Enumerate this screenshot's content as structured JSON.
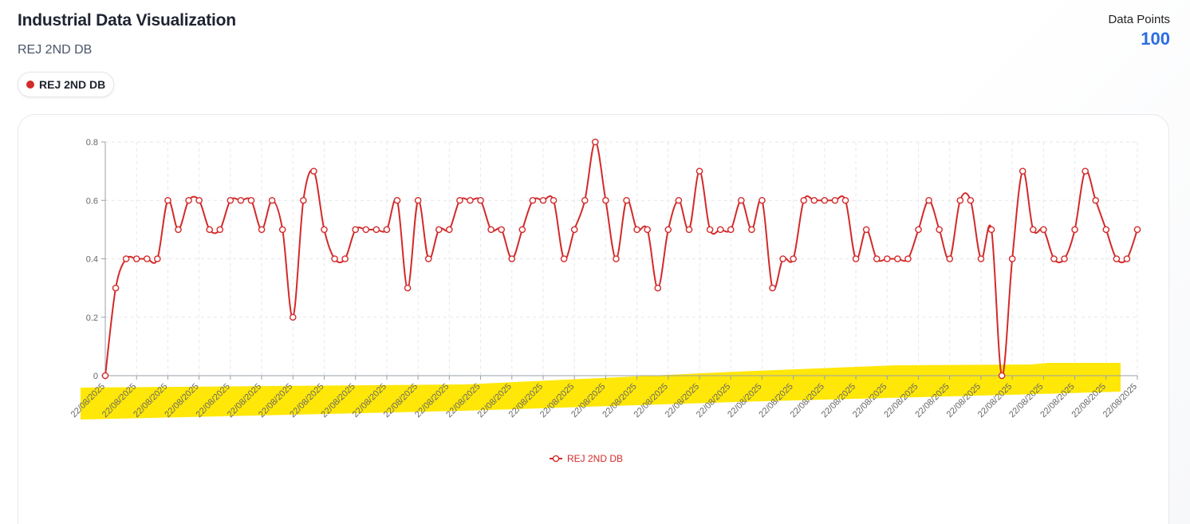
{
  "header": {
    "title": "Industrial Data Visualization",
    "subtitle": "REJ 2ND DB"
  },
  "stats": {
    "label": "Data Points",
    "value": "100"
  },
  "series_chip": {
    "label": "REJ 2ND DB",
    "color": "#d32a2a"
  },
  "colors": {
    "line": "#d32a2a",
    "grid": "#e5e7eb",
    "axis": "#9aa0a8",
    "highlight": "#ffe600"
  },
  "chart_data": {
    "type": "line",
    "title": "",
    "xlabel": "",
    "ylabel": "",
    "ylim": [
      0,
      0.8
    ],
    "yticks": [
      "0",
      "0.2",
      "0.4",
      "0.6",
      "0.8"
    ],
    "x_tick_labels": [
      "22/08/2025",
      "22/08/2025",
      "22/08/2025",
      "22/08/2025",
      "22/08/2025",
      "22/08/2025",
      "22/08/2025",
      "22/08/2025",
      "22/08/2025",
      "22/08/2025",
      "22/08/2025",
      "22/08/2025",
      "22/08/2025",
      "22/08/2025",
      "22/08/2025",
      "22/08/2025",
      "22/08/2025",
      "22/08/2025",
      "22/08/2025",
      "22/08/2025",
      "22/08/2025",
      "22/08/2025",
      "22/08/2025",
      "22/08/2025",
      "22/08/2025",
      "22/08/2025",
      "22/08/2025",
      "22/08/2025",
      "22/08/2025",
      "22/08/2025",
      "22/08/2025",
      "22/08/2025",
      "22/08/2025",
      "22/08/2025"
    ],
    "legend": "bottom-center",
    "series": [
      {
        "name": "REJ 2ND DB",
        "values": [
          0,
          0.3,
          0.4,
          0.4,
          0.4,
          0.4,
          0.6,
          0.5,
          0.6,
          0.6,
          0.5,
          0.5,
          0.6,
          0.6,
          0.6,
          0.5,
          0.6,
          0.5,
          0.2,
          0.6,
          0.7,
          0.5,
          0.4,
          0.4,
          0.5,
          0.5,
          0.5,
          0.5,
          0.6,
          0.3,
          0.6,
          0.4,
          0.5,
          0.5,
          0.6,
          0.6,
          0.6,
          0.5,
          0.5,
          0.4,
          0.5,
          0.6,
          0.6,
          0.6,
          0.4,
          0.5,
          0.6,
          0.8,
          0.6,
          0.4,
          0.6,
          0.5,
          0.5,
          0.3,
          0.5,
          0.6,
          0.5,
          0.7,
          0.5,
          0.5,
          0.5,
          0.6,
          0.5,
          0.6,
          0.3,
          0.4,
          0.4,
          0.6,
          0.6,
          0.6,
          0.6,
          0.6,
          0.4,
          0.5,
          0.4,
          0.4,
          0.4,
          0.4,
          0.5,
          0.6,
          0.5,
          0.4,
          0.6,
          0.6,
          0.4,
          0.5,
          0,
          0.4,
          0.7,
          0.5,
          0.5,
          0.4,
          0.4,
          0.5,
          0.7,
          0.6,
          0.5,
          0.4,
          0.4,
          0.5
        ]
      }
    ]
  }
}
